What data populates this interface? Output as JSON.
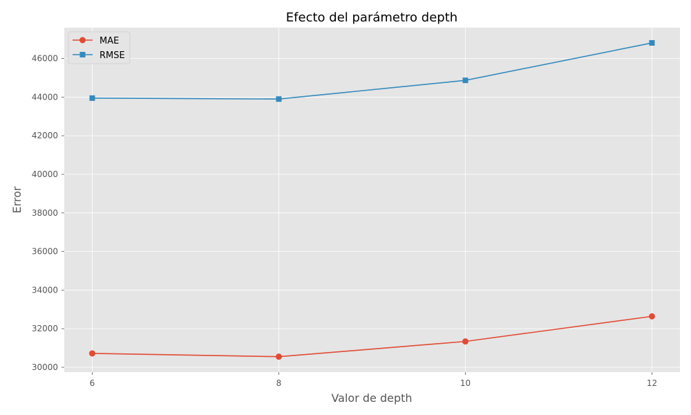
{
  "chart_data": {
    "type": "line",
    "title": "Efecto del parámetro depth",
    "xlabel": "Valor de depth",
    "ylabel": "Error",
    "x": [
      6,
      8,
      10,
      12
    ],
    "x_ticks": [
      6,
      8,
      10,
      12
    ],
    "y_ticks": [
      30000,
      32000,
      34000,
      36000,
      38000,
      40000,
      42000,
      44000,
      46000
    ],
    "xlim": [
      5.7,
      12.3
    ],
    "ylim": [
      29750,
      47600
    ],
    "grid": true,
    "legend_position": "top-left",
    "series": [
      {
        "name": "MAE",
        "values": [
          30720,
          30550,
          31340,
          32640
        ],
        "color": "#E24A33",
        "marker": "circle"
      },
      {
        "name": "RMSE",
        "values": [
          43950,
          43900,
          44870,
          46810
        ],
        "color": "#348ABD",
        "marker": "square"
      }
    ],
    "colors": {
      "plot_background": "#E5E5E5",
      "grid": "#FFFFFF"
    }
  }
}
